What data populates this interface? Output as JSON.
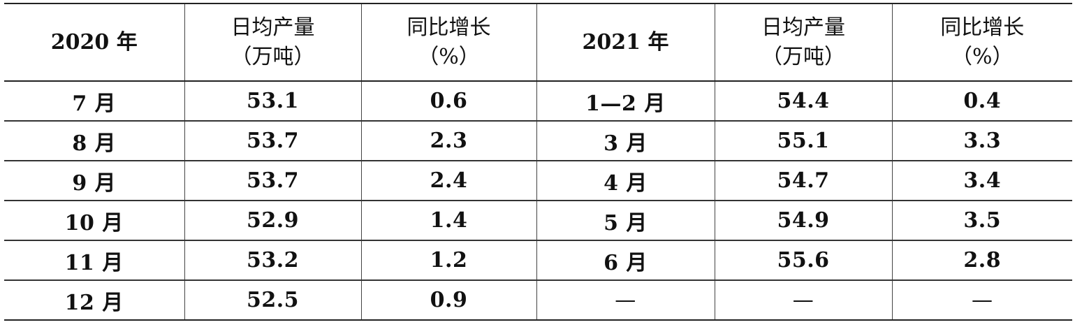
{
  "table": {
    "header": {
      "year2020": "2020 年",
      "avg_output_2020": [
        "日均产量",
        "（万吨）"
      ],
      "yoy_2020": [
        "同比增长",
        "（%）"
      ],
      "year2021": "2021 年",
      "avg_output_2021": [
        "日均产量",
        "（万吨）"
      ],
      "yoy_2021": [
        "同比增长",
        "（%）"
      ]
    },
    "rows": [
      [
        "7 月",
        "53.1",
        "0.6",
        "1—2 月",
        "54.4",
        "0.4"
      ],
      [
        "8 月",
        "53.7",
        "2.3",
        "3 月",
        "55.1",
        "3.3"
      ],
      [
        "9 月",
        "53.7",
        "2.4",
        "4 月",
        "54.7",
        "3.4"
      ],
      [
        "10 月",
        "52.9",
        "1.4",
        "5 月",
        "54.9",
        "3.5"
      ],
      [
        "11 月",
        "53.2",
        "1.2",
        "6 月",
        "55.6",
        "2.8"
      ],
      [
        "12 月",
        "52.5",
        "0.9",
        "—",
        "—",
        "—"
      ]
    ]
  }
}
